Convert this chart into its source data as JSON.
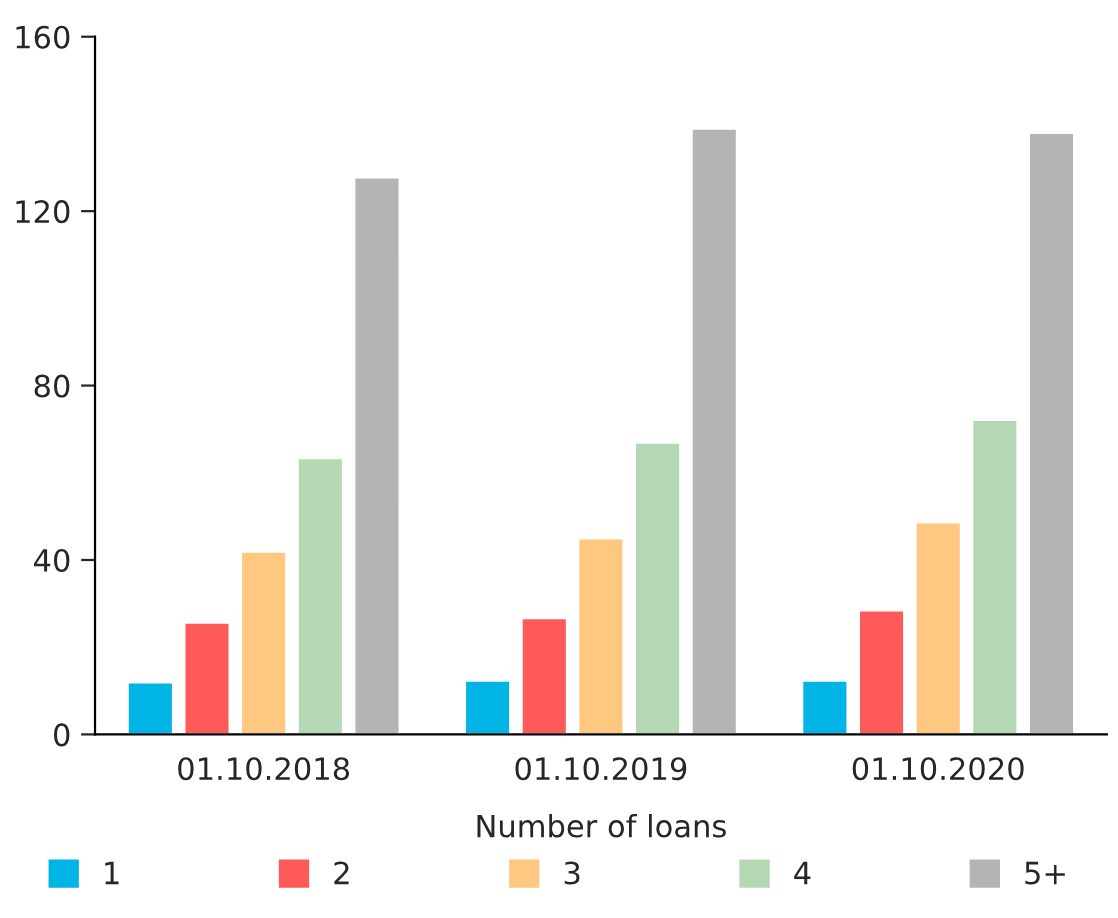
{
  "chart_data": {
    "type": "bar",
    "xlabel": "Number of loans",
    "categories": [
      "01.10.2018",
      "01.10.2019",
      "01.10.2020"
    ],
    "series": [
      {
        "name": "1",
        "color": "#00b4e6",
        "values": [
          12,
          12.4,
          12.4
        ]
      },
      {
        "name": "2",
        "color": "#ff5a5a",
        "values": [
          25.7,
          26.7,
          28.5
        ]
      },
      {
        "name": "3",
        "color": "#ffc880",
        "values": [
          42,
          45,
          48.7
        ]
      },
      {
        "name": "4",
        "color": "#b4d7b4",
        "values": [
          63.4,
          67,
          72.2
        ]
      },
      {
        "name": "5+",
        "color": "#b4b4b4",
        "values": [
          127.8,
          139,
          138
        ]
      }
    ],
    "ylim": [
      0,
      160
    ],
    "yticks": [
      0,
      40,
      80,
      120,
      160
    ],
    "grid": false,
    "legend": "bottom"
  }
}
